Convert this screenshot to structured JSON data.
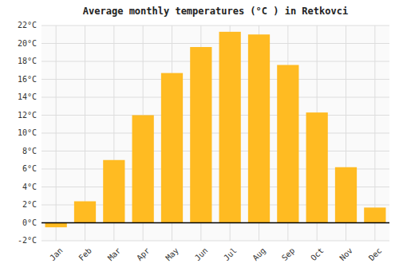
{
  "chart_data": {
    "type": "bar",
    "title": "Average monthly temperatures (°C ) in Retkovci",
    "categories": [
      "Jan",
      "Feb",
      "Mar",
      "Apr",
      "May",
      "Jun",
      "Jul",
      "Aug",
      "Sep",
      "Oct",
      "Nov",
      "Dec"
    ],
    "values": [
      -0.5,
      2.4,
      7.0,
      12.0,
      16.7,
      19.6,
      21.3,
      21.0,
      17.6,
      12.3,
      6.2,
      1.7
    ],
    "color": "#FFBB22",
    "ylim": [
      -2,
      22
    ],
    "yticks": [
      {
        "value": -2,
        "label": "-2°C"
      },
      {
        "value": 0,
        "label": "0°C"
      },
      {
        "value": 2,
        "label": "2°C"
      },
      {
        "value": 4,
        "label": "4°C"
      },
      {
        "value": 6,
        "label": "6°C"
      },
      {
        "value": 8,
        "label": "8°C"
      },
      {
        "value": 10,
        "label": "10°C"
      },
      {
        "value": 12,
        "label": "12°C"
      },
      {
        "value": 14,
        "label": "14°C"
      },
      {
        "value": 16,
        "label": "16°C"
      },
      {
        "value": 18,
        "label": "18°C"
      },
      {
        "value": 20,
        "label": "20°C"
      },
      {
        "value": 22,
        "label": "22°C"
      }
    ],
    "grid": true
  }
}
